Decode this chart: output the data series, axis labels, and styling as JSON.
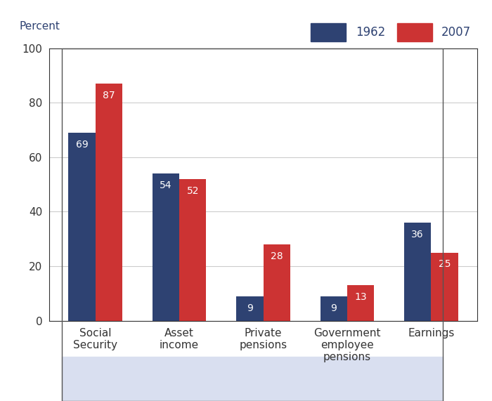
{
  "categories": [
    "Social\nSecurity",
    "Asset\nincome",
    "Private\npensions",
    "Government\nemployee\npensions",
    "Earnings"
  ],
  "values_1962": [
    69,
    54,
    9,
    9,
    36
  ],
  "values_2007": [
    87,
    52,
    28,
    13,
    25
  ],
  "color_1962": "#2e4272",
  "color_2007": "#cc3333",
  "title": "Percent",
  "legend_labels": [
    "1962",
    "2007"
  ],
  "ylim": [
    0,
    100
  ],
  "yticks": [
    0,
    20,
    40,
    60,
    80,
    100
  ],
  "bar_width": 0.32,
  "figure_bg_color": "#ffffff",
  "plot_bg_color": "#ffffff",
  "xtick_area_bg": "#d9dff0",
  "label_fontsize": 11,
  "tick_fontsize": 11,
  "value_fontsize": 10,
  "legend_fontsize": 12,
  "title_color": "#2e4272"
}
